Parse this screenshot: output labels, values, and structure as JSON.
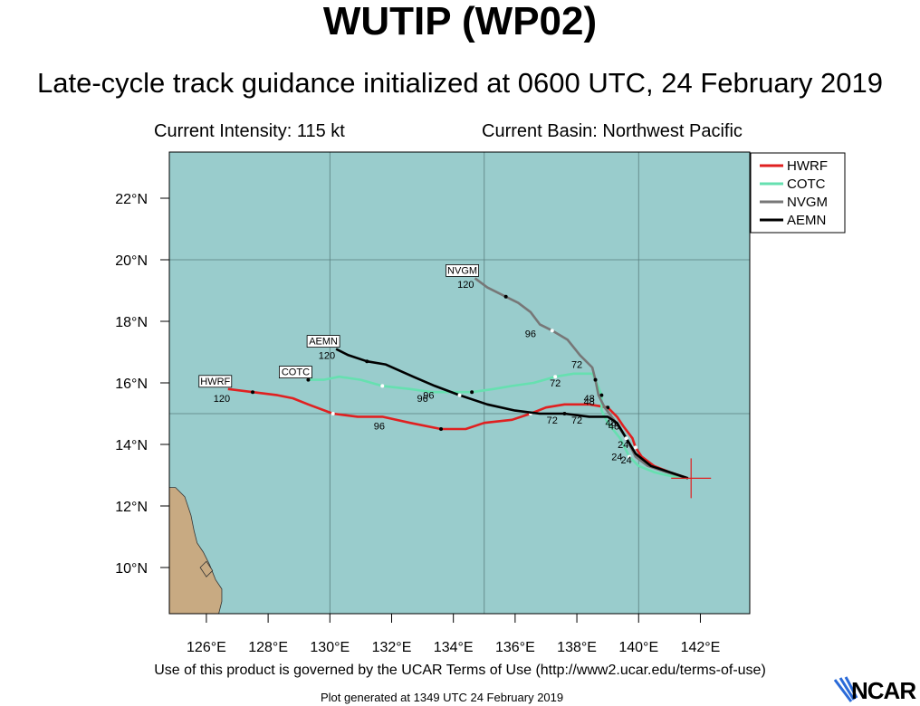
{
  "header": {
    "title": "WUTIP (WP02)",
    "subtitle": "Late-cycle track guidance initialized at 0600 UTC, 24 February 2019",
    "current_intensity": "Current Intensity: 115 kt",
    "current_basin": "Current Basin: Northwest Pacific"
  },
  "footer": {
    "terms": "Use of this product is governed by the UCAR Terms of Use (http://www2.ucar.edu/terms-of-use)",
    "generated": "Plot generated at 1349 UTC   24 February 2019",
    "logo_text": "NCAR"
  },
  "colors": {
    "ocean": "#99cccc",
    "land": "#c8aa82",
    "grid": "#5a7f7f",
    "HWRF": "#e02020",
    "COTC": "#66e0b0",
    "NVGM": "#777777",
    "AEMN": "#000000"
  },
  "chart_data": {
    "type": "map-track",
    "xlim": [
      124.8,
      143.6
    ],
    "ylim": [
      8.5,
      23.5
    ],
    "x_ticks": [
      126,
      128,
      130,
      132,
      134,
      136,
      138,
      140,
      142
    ],
    "x_tick_labels": [
      "126°E",
      "128°E",
      "130°E",
      "132°E",
      "134°E",
      "136°E",
      "138°E",
      "140°E",
      "142°E"
    ],
    "y_ticks": [
      10,
      12,
      14,
      16,
      18,
      20,
      22
    ],
    "y_tick_labels": [
      "10°N",
      "12°N",
      "14°N",
      "16°N",
      "18°N",
      "20°N",
      "22°N"
    ],
    "grid_lon": [
      130,
      135,
      140
    ],
    "grid_lat": [
      15,
      20
    ],
    "legend_position": "top-right",
    "current_position": {
      "lon": 141.7,
      "lat": 12.9
    },
    "series": [
      {
        "name": "HWRF",
        "color": "#e02020",
        "end_label": "HWRF",
        "points": [
          [
            141.6,
            12.9
          ],
          [
            141.0,
            13.1
          ],
          [
            140.5,
            13.3
          ],
          [
            140.1,
            13.6
          ],
          [
            139.9,
            13.9
          ],
          [
            139.8,
            14.2
          ],
          [
            139.5,
            14.6
          ],
          [
            139.3,
            14.9
          ],
          [
            139.0,
            15.2
          ],
          [
            138.4,
            15.3
          ],
          [
            137.6,
            15.3
          ],
          [
            137.0,
            15.2
          ],
          [
            136.5,
            15.0
          ],
          [
            135.9,
            14.8
          ],
          [
            135.0,
            14.7
          ],
          [
            134.4,
            14.5
          ],
          [
            133.6,
            14.5
          ],
          [
            132.6,
            14.7
          ],
          [
            131.7,
            14.9
          ],
          [
            130.9,
            14.9
          ],
          [
            130.1,
            15.0
          ],
          [
            129.3,
            15.3
          ],
          [
            128.8,
            15.5
          ],
          [
            128.3,
            15.6
          ],
          [
            127.5,
            15.7
          ],
          [
            126.7,
            15.8
          ]
        ],
        "labels": [
          {
            "text": "24",
            "lon": 139.3,
            "lat": 13.6
          },
          {
            "text": "48",
            "lon": 139.1,
            "lat": 14.7
          },
          {
            "text": "72",
            "lon": 137.2,
            "lat": 14.8
          },
          {
            "text": "96",
            "lon": 131.6,
            "lat": 14.6
          },
          {
            "text": "120",
            "lon": 126.5,
            "lat": 15.5
          }
        ]
      },
      {
        "name": "COTC",
        "color": "#66e0b0",
        "end_label": "COTC",
        "points": [
          [
            141.5,
            12.9
          ],
          [
            140.9,
            13.0
          ],
          [
            140.5,
            13.1
          ],
          [
            140.0,
            13.3
          ],
          [
            139.7,
            13.6
          ],
          [
            139.4,
            14.2
          ],
          [
            139.0,
            14.7
          ],
          [
            138.8,
            15.1
          ],
          [
            138.8,
            15.6
          ],
          [
            138.6,
            16.1
          ],
          [
            138.5,
            16.3
          ],
          [
            137.9,
            16.3
          ],
          [
            137.3,
            16.2
          ],
          [
            136.6,
            16.0
          ],
          [
            135.9,
            15.9
          ],
          [
            135.3,
            15.8
          ],
          [
            134.6,
            15.7
          ],
          [
            133.9,
            15.7
          ],
          [
            133.3,
            15.7
          ],
          [
            132.6,
            15.8
          ],
          [
            131.7,
            15.9
          ],
          [
            131.0,
            16.1
          ],
          [
            130.3,
            16.2
          ],
          [
            129.8,
            16.1
          ],
          [
            129.3,
            16.1
          ]
        ],
        "labels": [
          {
            "text": "24",
            "lon": 139.5,
            "lat": 14.0
          },
          {
            "text": "48",
            "lon": 138.4,
            "lat": 15.4
          },
          {
            "text": "72",
            "lon": 137.3,
            "lat": 16.0
          },
          {
            "text": "96",
            "lon": 133.0,
            "lat": 15.5
          }
        ]
      },
      {
        "name": "NVGM",
        "color": "#777777",
        "end_label": "NVGM",
        "points": [
          [
            141.6,
            12.9
          ],
          [
            140.9,
            13.1
          ],
          [
            140.3,
            13.3
          ],
          [
            139.9,
            13.6
          ],
          [
            139.6,
            14.2
          ],
          [
            139.2,
            14.8
          ],
          [
            138.9,
            15.2
          ],
          [
            138.7,
            15.6
          ],
          [
            138.6,
            16.1
          ],
          [
            138.5,
            16.5
          ],
          [
            138.1,
            16.9
          ],
          [
            137.7,
            17.4
          ],
          [
            137.2,
            17.7
          ],
          [
            136.8,
            17.9
          ],
          [
            136.5,
            18.3
          ],
          [
            136.1,
            18.6
          ],
          [
            135.7,
            18.8
          ],
          [
            135.1,
            19.1
          ],
          [
            134.7,
            19.4
          ]
        ],
        "labels": [
          {
            "text": "48",
            "lon": 138.4,
            "lat": 15.5
          },
          {
            "text": "72",
            "lon": 138.0,
            "lat": 16.6
          },
          {
            "text": "96",
            "lon": 136.5,
            "lat": 17.6
          },
          {
            "text": "120",
            "lon": 134.4,
            "lat": 19.2
          }
        ]
      },
      {
        "name": "AEMN",
        "color": "#000000",
        "end_label": "AEMN",
        "points": [
          [
            141.6,
            12.9
          ],
          [
            141.0,
            13.1
          ],
          [
            140.4,
            13.3
          ],
          [
            139.9,
            13.7
          ],
          [
            139.6,
            14.2
          ],
          [
            139.3,
            14.7
          ],
          [
            139.0,
            14.9
          ],
          [
            138.4,
            14.9
          ],
          [
            137.6,
            15.0
          ],
          [
            136.8,
            15.0
          ],
          [
            136.0,
            15.1
          ],
          [
            135.1,
            15.3
          ],
          [
            134.2,
            15.6
          ],
          [
            133.4,
            15.9
          ],
          [
            132.7,
            16.2
          ],
          [
            131.8,
            16.6
          ],
          [
            131.2,
            16.7
          ],
          [
            130.6,
            16.9
          ],
          [
            130.2,
            17.1
          ]
        ],
        "labels": [
          {
            "text": "24",
            "lon": 139.6,
            "lat": 13.5
          },
          {
            "text": "48",
            "lon": 139.2,
            "lat": 14.6
          },
          {
            "text": "72",
            "lon": 138.0,
            "lat": 14.8
          },
          {
            "text": "96",
            "lon": 133.2,
            "lat": 15.6
          },
          {
            "text": "120",
            "lon": 129.9,
            "lat": 16.9
          }
        ]
      }
    ],
    "land_polygons": [
      [
        [
          124.8,
          12.6
        ],
        [
          125.0,
          12.6
        ],
        [
          125.3,
          12.3
        ],
        [
          125.5,
          11.7
        ],
        [
          125.6,
          11.2
        ],
        [
          125.7,
          10.8
        ],
        [
          125.9,
          10.5
        ],
        [
          126.1,
          10.1
        ],
        [
          126.3,
          9.6
        ],
        [
          126.5,
          9.3
        ],
        [
          126.5,
          8.9
        ],
        [
          126.4,
          8.5
        ],
        [
          124.8,
          8.5
        ]
      ],
      [
        [
          125.8,
          10.0
        ],
        [
          126.0,
          10.2
        ],
        [
          126.2,
          9.9
        ],
        [
          126.0,
          9.7
        ]
      ]
    ]
  },
  "legend": {
    "items": [
      {
        "label": "HWRF",
        "color": "#e02020"
      },
      {
        "label": "COTC",
        "color": "#66e0b0"
      },
      {
        "label": "NVGM",
        "color": "#777777"
      },
      {
        "label": "AEMN",
        "color": "#000000"
      }
    ]
  }
}
